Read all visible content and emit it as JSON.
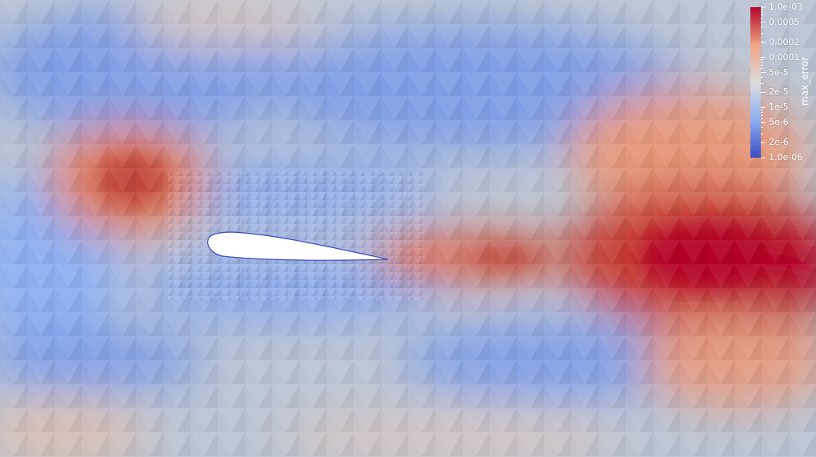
{
  "scene": {
    "background_color": "#b9c3d3",
    "airfoil_color": "#ffffff",
    "colormap": [
      "#3b4cc0",
      "#8caff2",
      "#dddddd",
      "#f0a383",
      "#b40426"
    ]
  },
  "colorbar": {
    "title": "max_error",
    "scale": "log",
    "range": [
      1e-06,
      0.001
    ],
    "tick_labels": [
      "1.0e-03",
      "0.0005",
      "0.0002",
      "0.0001",
      "5e-5",
      "2e-5",
      "1e-5",
      "5e-6",
      "2e-6",
      "1.0e-06"
    ],
    "tick_values": [
      0.001,
      0.0005,
      0.0002,
      0.0001,
      5e-05,
      2e-05,
      1e-05,
      5e-06,
      2e-06,
      1e-06
    ]
  }
}
